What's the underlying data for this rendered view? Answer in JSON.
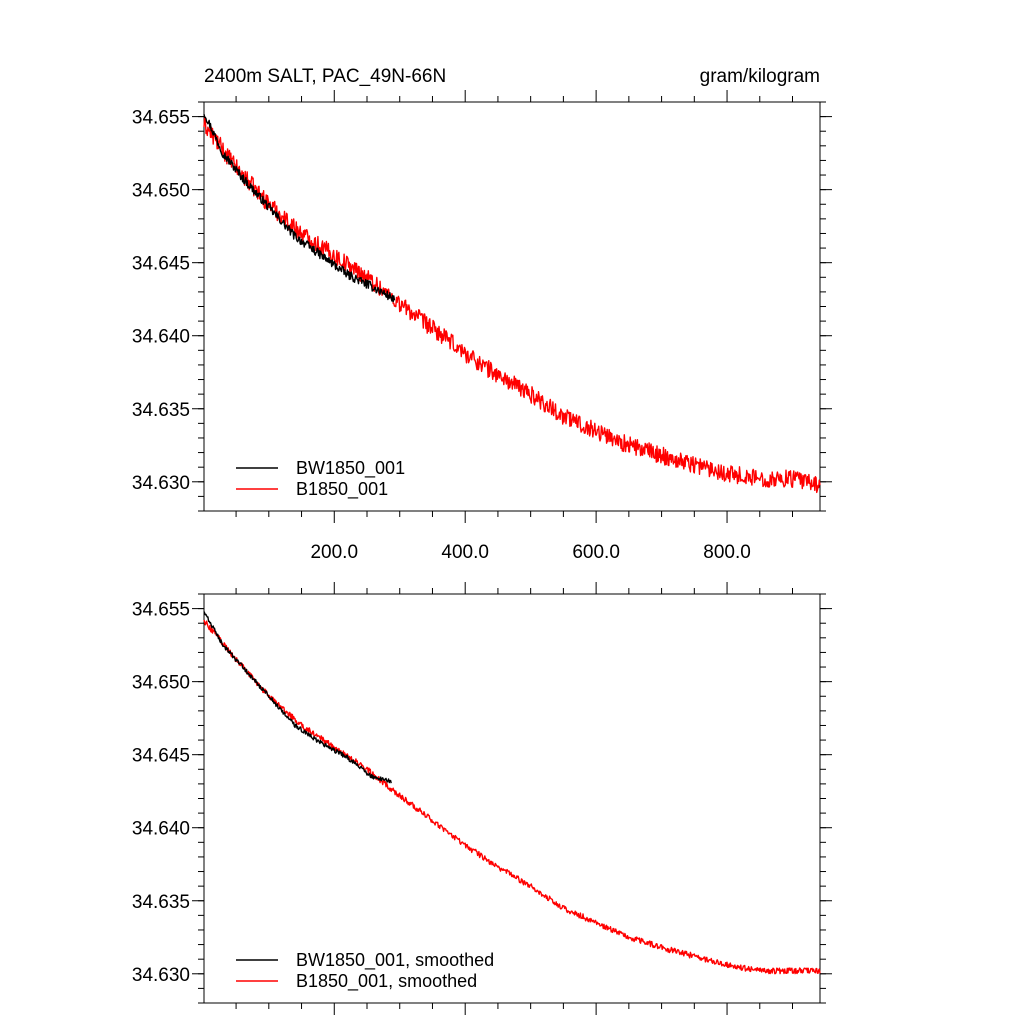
{
  "header": {
    "title": "2400m SALT, PAC_49N-66N",
    "units": "gram/kilogram"
  },
  "colors": {
    "series_a": "#000000",
    "series_b": "#ff0000",
    "axis": "#000000",
    "background": "#ffffff"
  },
  "chart_data": [
    {
      "type": "line",
      "title": "2400m SALT, PAC_49N-66N",
      "units": "gram/kilogram",
      "xlabel": "",
      "ylabel": "",
      "xlim": [
        1,
        942
      ],
      "ylim": [
        34.628,
        34.656
      ],
      "x_ticks": [
        200,
        400,
        600,
        800
      ],
      "x_tick_labels": [
        "200.0",
        "400.0",
        "600.0",
        "800.0"
      ],
      "y_ticks": [
        34.655,
        34.65,
        34.645,
        34.64,
        34.635,
        34.63
      ],
      "y_tick_labels": [
        "34.655",
        "34.650",
        "34.645",
        "34.640",
        "34.635",
        "34.630"
      ],
      "grid": false,
      "legend_position": "bottom-left",
      "series": [
        {
          "name": "BW1850_001",
          "color": "#000000",
          "x_end": 292,
          "x": [
            1,
            30,
            60,
            100,
            140,
            180,
            220,
            260,
            292
          ],
          "y": [
            34.6553,
            34.6525,
            34.6508,
            34.6488,
            34.6468,
            34.6455,
            34.6442,
            34.6433,
            34.6425
          ],
          "noise_amp": 0.0006
        },
        {
          "name": "B1850_001",
          "color": "#ff0000",
          "x_end": 942,
          "x": [
            1,
            50,
            100,
            150,
            200,
            250,
            300,
            350,
            400,
            450,
            500,
            550,
            600,
            650,
            700,
            750,
            800,
            850,
            900,
            942
          ],
          "y": [
            34.6545,
            34.6515,
            34.649,
            34.647,
            34.6455,
            34.644,
            34.6422,
            34.6405,
            34.6388,
            34.6373,
            34.636,
            34.6345,
            34.6335,
            34.6325,
            34.6318,
            34.6312,
            34.6306,
            34.6302,
            34.6302,
            34.6298
          ],
          "noise_amp": 0.0012
        }
      ]
    },
    {
      "type": "line",
      "title": "",
      "xlabel": "",
      "ylabel": "",
      "xlim": [
        1,
        942
      ],
      "ylim": [
        34.628,
        34.656
      ],
      "x_ticks": [
        200,
        400,
        600,
        800
      ],
      "y_ticks": [
        34.655,
        34.65,
        34.645,
        34.64,
        34.635,
        34.63
      ],
      "y_tick_labels": [
        "34.655",
        "34.650",
        "34.645",
        "34.640",
        "34.635",
        "34.630"
      ],
      "grid": false,
      "legend_position": "bottom-left",
      "series": [
        {
          "name": "BW1850_001, smoothed",
          "color": "#000000",
          "x_end": 287,
          "x": [
            1,
            30,
            60,
            100,
            140,
            180,
            220,
            260,
            287
          ],
          "y": [
            34.6548,
            34.6525,
            34.651,
            34.649,
            34.647,
            34.6458,
            34.6448,
            34.6434,
            34.6432
          ],
          "noise_amp": 0.0003
        },
        {
          "name": "B1850_001, smoothed",
          "color": "#ff0000",
          "x_end": 942,
          "x": [
            1,
            50,
            100,
            150,
            200,
            250,
            300,
            350,
            400,
            450,
            500,
            550,
            600,
            650,
            700,
            750,
            800,
            850,
            900,
            942
          ],
          "y": [
            34.6542,
            34.6515,
            34.649,
            34.647,
            34.6455,
            34.644,
            34.6422,
            34.6405,
            34.6388,
            34.6373,
            34.636,
            34.6345,
            34.6335,
            34.6325,
            34.6318,
            34.6312,
            34.6306,
            34.6302,
            34.6302,
            34.6302
          ],
          "noise_amp": 0.0004
        }
      ]
    }
  ]
}
